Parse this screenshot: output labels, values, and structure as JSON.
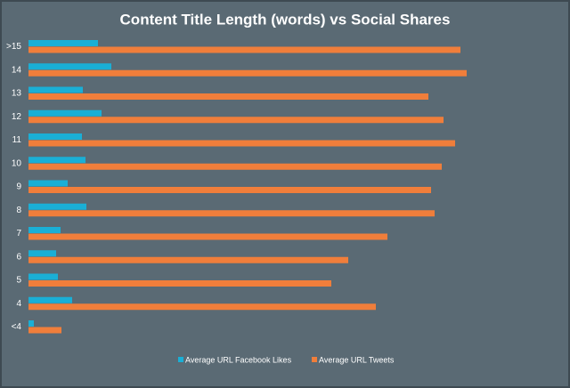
{
  "chart_data": {
    "type": "bar",
    "orientation": "horizontal",
    "title": "Content Title Length (words) vs Social Shares",
    "categories": [
      ">15",
      "14",
      "13",
      "12",
      "11",
      "10",
      "9",
      "8",
      "7",
      "6",
      "5",
      "4",
      "<4"
    ],
    "series": [
      {
        "name": "Average URL Facebook Likes",
        "color": "#1aafd6",
        "values": [
          78,
          93,
          61,
          82,
          60,
          64,
          44,
          65,
          36,
          31,
          33,
          49,
          6
        ]
      },
      {
        "name": "Average URL Tweets",
        "color": "#f07e3b",
        "values": [
          485,
          492,
          449,
          466,
          479,
          464,
          452,
          456,
          403,
          359,
          340,
          390,
          37
        ]
      }
    ],
    "legend": "bottom"
  }
}
